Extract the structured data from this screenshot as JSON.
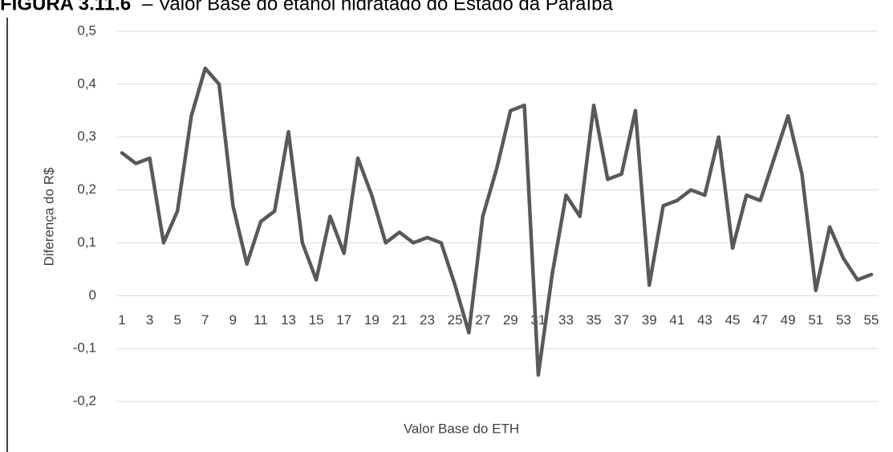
{
  "chart_data": {
    "type": "line",
    "figure_label": "FIGURA 3.11.6",
    "title": "– Valor Base do etanol hidratado do Estado da Paraíba",
    "x_label": "Valor Base do ETH",
    "y_label": "Diferença do R$",
    "categories": [
      "1",
      null,
      "3",
      null,
      "5",
      null,
      "7",
      null,
      "9",
      null,
      "11",
      null,
      "13",
      null,
      "15",
      null,
      "17",
      null,
      "19",
      null,
      "21",
      null,
      "23",
      null,
      "25",
      null,
      "27",
      null,
      "29",
      null,
      "31",
      null,
      "33",
      null,
      "35",
      null,
      "37",
      null,
      "39",
      null,
      "41",
      null,
      "43",
      null,
      "45",
      null,
      "47",
      null,
      "49",
      null,
      "51",
      null,
      "53",
      null,
      "55"
    ],
    "series": [
      {
        "color": "#595959",
        "values": [
          0.27,
          0.25,
          0.26,
          0.1,
          0.16,
          0.34,
          0.43,
          0.4,
          0.17,
          0.06,
          0.14,
          0.16,
          0.31,
          0.1,
          0.03,
          0.15,
          0.08,
          0.26,
          0.19,
          0.1,
          0.12,
          0.1,
          0.11,
          0.1,
          0.02,
          -0.07,
          0.15,
          0.24,
          0.35,
          0.36,
          -0.15,
          0.04,
          0.19,
          0.15,
          0.36,
          0.22,
          0.23,
          0.35,
          0.02,
          0.17,
          0.18,
          0.2,
          0.19,
          0.3,
          0.09,
          0.19,
          0.18,
          0.26,
          0.34,
          0.23,
          0.01,
          0.13,
          0.07,
          0.03,
          0.04
        ]
      }
    ],
    "ylim": [
      -0.2,
      0.5
    ],
    "yticks": [
      {
        "value": 0.5,
        "label": "0,5"
      },
      {
        "value": 0.4,
        "label": "0,4"
      },
      {
        "value": 0.3,
        "label": "0,3"
      },
      {
        "value": 0.2,
        "label": "0,2"
      },
      {
        "value": 0.1,
        "label": "0,1"
      },
      0,
      {
        "value": -0.1,
        "label": "-0,1"
      },
      {
        "value": -0.2,
        "label": "-0,2"
      }
    ],
    "grid": true
  }
}
